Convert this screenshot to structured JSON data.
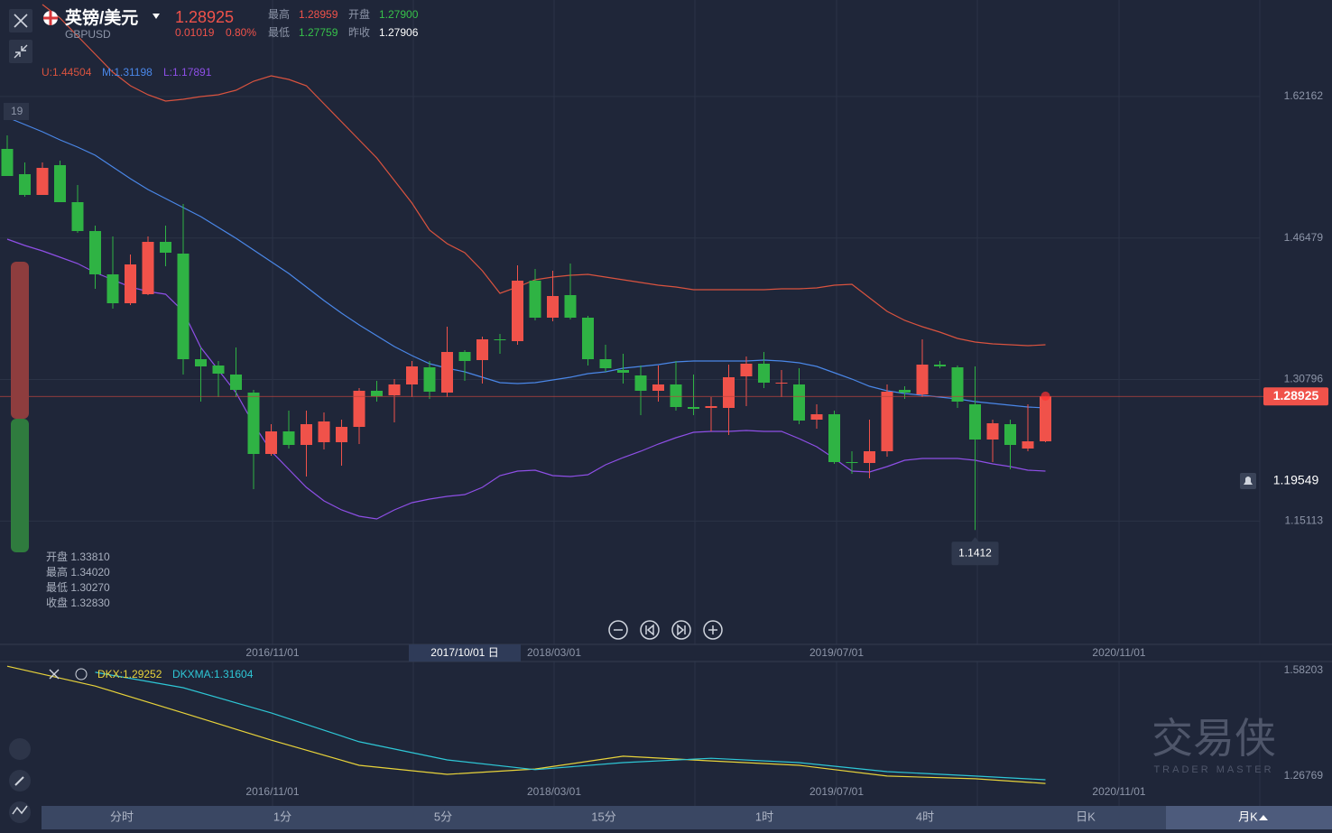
{
  "header": {
    "symbol": "英镑/美元",
    "code": "GBPUSD",
    "price": "1.28925",
    "change": "0.01019",
    "change_pct": "0.80%",
    "stats": [
      [
        "最高",
        "1.28959"
      ],
      [
        "开盘",
        "1.27900"
      ],
      [
        "最低",
        "1.27759"
      ],
      [
        "昨收",
        "1.27906"
      ]
    ]
  },
  "side_tag": "19",
  "info": [
    "开盘 1.33810",
    "最高 1.34020",
    "最低 1.30270",
    "收盘 1.32830"
  ],
  "crosshair_date": "2017/10/01 日",
  "alert_price": 1.19549,
  "watermark": {
    "title": "交易侠",
    "subtitle": "TRADER MASTER"
  },
  "timeframes": [
    "分时",
    "1分",
    "5分",
    "15分",
    "1时",
    "4时",
    "日K",
    "月K"
  ],
  "chart_data": [
    {
      "type": "candlestick",
      "up_color": "#f0524a",
      "down_color": "#2fb344",
      "ylim": [
        1.0145,
        1.7285
      ],
      "yticks": [
        1.15113,
        1.30796,
        1.46479,
        1.62162
      ],
      "grid": true,
      "x_labels": [
        "2016/11/01",
        "2018/03/01",
        "2019/07/01",
        "2020/11/01"
      ],
      "candles": [
        {
          "open": 1.5635,
          "high": 1.5785,
          "low": 1.5335,
          "close": 1.5335
        },
        {
          "open": 1.5355,
          "high": 1.5485,
          "low": 1.5105,
          "close": 1.5125
        },
        {
          "open": 1.5125,
          "high": 1.5485,
          "low": 1.5125,
          "close": 1.5425
        },
        {
          "open": 1.5455,
          "high": 1.5505,
          "low": 1.5045,
          "close": 1.5045
        },
        {
          "open": 1.5045,
          "high": 1.5235,
          "low": 1.4705,
          "close": 1.4725
        },
        {
          "open": 1.4725,
          "high": 1.4785,
          "low": 1.4085,
          "close": 1.4245
        },
        {
          "open": 1.4245,
          "high": 1.4665,
          "low": 1.3865,
          "close": 1.3925
        },
        {
          "open": 1.3925,
          "high": 1.4465,
          "low": 1.3905,
          "close": 1.4355
        },
        {
          "open": 1.4025,
          "high": 1.4665,
          "low": 1.4015,
          "close": 1.4605
        },
        {
          "open": 1.4605,
          "high": 1.4785,
          "low": 1.4335,
          "close": 1.4485
        },
        {
          "open": 1.4475,
          "high": 1.5025,
          "low": 1.3135,
          "close": 1.3305
        },
        {
          "open": 1.3305,
          "high": 1.3435,
          "low": 1.2835,
          "close": 1.3225
        },
        {
          "open": 1.3235,
          "high": 1.3285,
          "low": 1.2885,
          "close": 1.3145
        },
        {
          "open": 1.3135,
          "high": 1.3435,
          "low": 1.2885,
          "close": 1.2965
        },
        {
          "open": 1.2935,
          "high": 1.2965,
          "low": 1.1865,
          "close": 1.2255
        },
        {
          "open": 1.2255,
          "high": 1.2585,
          "low": 1.2235,
          "close": 1.2505
        },
        {
          "open": 1.2505,
          "high": 1.2735,
          "low": 1.2315,
          "close": 1.2355
        },
        {
          "open": 1.2355,
          "high": 1.2735,
          "low": 1.2005,
          "close": 1.2585
        },
        {
          "open": 1.2385,
          "high": 1.2715,
          "low": 1.2305,
          "close": 1.2615
        },
        {
          "open": 1.2385,
          "high": 1.2635,
          "low": 1.2125,
          "close": 1.2555
        },
        {
          "open": 1.2555,
          "high": 1.2985,
          "low": 1.2365,
          "close": 1.2955
        },
        {
          "open": 1.2955,
          "high": 1.3065,
          "low": 1.2835,
          "close": 1.2895
        },
        {
          "open": 1.2905,
          "high": 1.3085,
          "low": 1.2605,
          "close": 1.3025
        },
        {
          "open": 1.3025,
          "high": 1.3285,
          "low": 1.2885,
          "close": 1.3225
        },
        {
          "open": 1.3215,
          "high": 1.3285,
          "low": 1.2865,
          "close": 1.2945
        },
        {
          "open": 1.2935,
          "high": 1.3665,
          "low": 1.2885,
          "close": 1.3385
        },
        {
          "open": 1.3385,
          "high": 1.3405,
          "low": 1.3065,
          "close": 1.3285
        },
        {
          "open": 1.3295,
          "high": 1.3555,
          "low": 1.3035,
          "close": 1.3525
        },
        {
          "open": 1.3525,
          "high": 1.3585,
          "low": 1.3365,
          "close": 1.3515
        },
        {
          "open": 1.3505,
          "high": 1.4345,
          "low": 1.3465,
          "close": 1.4175
        },
        {
          "open": 1.4175,
          "high": 1.4305,
          "low": 1.3735,
          "close": 1.3765
        },
        {
          "open": 1.3765,
          "high": 1.4285,
          "low": 1.3725,
          "close": 1.4005
        },
        {
          "open": 1.4015,
          "high": 1.4365,
          "low": 1.3745,
          "close": 1.3765
        },
        {
          "open": 1.3765,
          "high": 1.3785,
          "low": 1.3235,
          "close": 1.3305
        },
        {
          "open": 1.3305,
          "high": 1.3465,
          "low": 1.3165,
          "close": 1.3205
        },
        {
          "open": 1.3185,
          "high": 1.3365,
          "low": 1.3035,
          "close": 1.3155
        },
        {
          "open": 1.3125,
          "high": 1.3235,
          "low": 1.2685,
          "close": 1.2955
        },
        {
          "open": 1.2955,
          "high": 1.3235,
          "low": 1.2835,
          "close": 1.3025
        },
        {
          "open": 1.3025,
          "high": 1.3285,
          "low": 1.2735,
          "close": 1.2775
        },
        {
          "open": 1.2775,
          "high": 1.3135,
          "low": 1.2685,
          "close": 1.2755
        },
        {
          "open": 1.2765,
          "high": 1.2885,
          "low": 1.2505,
          "close": 1.2785
        },
        {
          "open": 1.2765,
          "high": 1.3245,
          "low": 1.2465,
          "close": 1.3105
        },
        {
          "open": 1.3115,
          "high": 1.3335,
          "low": 1.2785,
          "close": 1.3255
        },
        {
          "open": 1.3255,
          "high": 1.3385,
          "low": 1.2985,
          "close": 1.3045
        },
        {
          "open": 1.3035,
          "high": 1.3185,
          "low": 1.2885,
          "close": 1.3045
        },
        {
          "open": 1.3025,
          "high": 1.3205,
          "low": 1.2585,
          "close": 1.2625
        },
        {
          "open": 1.2635,
          "high": 1.2805,
          "low": 1.2535,
          "close": 1.2695
        },
        {
          "open": 1.2695,
          "high": 1.2735,
          "low": 1.2145,
          "close": 1.2165
        },
        {
          "open": 1.2165,
          "high": 1.2285,
          "low": 1.2035,
          "close": 1.2155
        },
        {
          "open": 1.2155,
          "high": 1.2635,
          "low": 1.1985,
          "close": 1.2285
        },
        {
          "open": 1.2285,
          "high": 1.3025,
          "low": 1.2225,
          "close": 1.2945
        },
        {
          "open": 1.2965,
          "high": 1.3005,
          "low": 1.2865,
          "close": 1.2935
        },
        {
          "open": 1.2915,
          "high": 1.3525,
          "low": 1.2885,
          "close": 1.3245
        },
        {
          "open": 1.3245,
          "high": 1.3285,
          "low": 1.3205,
          "close": 1.3225
        },
        {
          "open": 1.3215,
          "high": 1.3235,
          "low": 1.2765,
          "close": 1.2835
        },
        {
          "open": 1.2805,
          "high": 1.3225,
          "low": 1.1412,
          "close": 1.2415
        },
        {
          "open": 1.2415,
          "high": 1.2635,
          "low": 1.2165,
          "close": 1.2595
        },
        {
          "open": 1.2585,
          "high": 1.2635,
          "low": 1.2085,
          "close": 1.2355
        },
        {
          "open": 1.2315,
          "high": 1.2805,
          "low": 1.2285,
          "close": 1.2395
        },
        {
          "open": 1.2395,
          "high": 1.28959,
          "low": 1.2385,
          "close": 1.28925
        }
      ],
      "series": [
        {
          "name": "U:1.44504",
          "color": "#d9533f",
          "values": [
            null,
            null,
            1.7235,
            1.7085,
            1.6885,
            1.6685,
            1.6485,
            1.6335,
            1.6235,
            1.6165,
            1.6185,
            1.6215,
            1.6235,
            1.6285,
            1.6385,
            1.6445,
            1.6405,
            1.6335,
            1.6135,
            1.5935,
            1.5735,
            1.5535,
            1.5285,
            1.5035,
            1.4735,
            1.4585,
            1.4485,
            1.4285,
            1.4035,
            1.4105,
            1.4185,
            1.4215,
            1.4235,
            1.4245,
            1.4215,
            1.4185,
            1.4155,
            1.4125,
            1.4105,
            1.4075,
            1.4075,
            1.4075,
            1.4075,
            1.4075,
            1.4085,
            1.4085,
            1.4095,
            1.4125,
            1.4135,
            1.3985,
            1.3835,
            1.3735,
            1.3665,
            1.3605,
            1.3535,
            1.3495,
            1.3475,
            1.3465,
            1.3455,
            1.3465
          ]
        },
        {
          "name": "M:1.31198",
          "color": "#4a87e8",
          "values": [
            1.5985,
            1.5905,
            1.5825,
            1.5735,
            1.5655,
            1.5565,
            1.5435,
            1.5305,
            1.5185,
            1.5085,
            1.4985,
            1.4885,
            1.4765,
            1.4645,
            1.4515,
            1.4385,
            1.4255,
            1.4105,
            1.3955,
            1.3815,
            1.3685,
            1.3565,
            1.3445,
            1.3345,
            1.3255,
            1.3205,
            1.3165,
            1.3105,
            1.3045,
            1.3035,
            1.3045,
            1.3075,
            1.3105,
            1.3145,
            1.3165,
            1.3205,
            1.3225,
            1.3245,
            1.3275,
            1.3285,
            1.3285,
            1.3285,
            1.3285,
            1.3295,
            1.3285,
            1.3265,
            1.3225,
            1.3155,
            1.3085,
            1.3005,
            1.2955,
            1.2925,
            1.2905,
            1.2885,
            1.2865,
            1.2835,
            1.2815,
            1.2795,
            1.2775,
            1.2765
          ]
        },
        {
          "name": "L:1.17891",
          "color": "#8e4fe6",
          "values": [
            1.4635,
            1.4565,
            1.4505,
            1.4435,
            1.4365,
            1.4265,
            1.4185,
            1.4105,
            1.4055,
            1.4025,
            1.3835,
            1.3435,
            1.3185,
            1.2935,
            1.2585,
            1.2285,
            1.2085,
            1.1885,
            1.1735,
            1.1635,
            1.1565,
            1.1535,
            1.1635,
            1.1715,
            1.1755,
            1.1785,
            1.1805,
            1.1885,
            1.2015,
            1.2065,
            1.2075,
            1.2015,
            1.2005,
            1.2025,
            1.2135,
            1.2215,
            1.2285,
            1.2365,
            1.2435,
            1.2495,
            1.2505,
            1.2505,
            1.2515,
            1.2505,
            1.2505,
            1.2425,
            1.2335,
            1.2205,
            1.2065,
            1.2055,
            1.2115,
            1.2185,
            1.2205,
            1.2205,
            1.2205,
            1.2185,
            1.2145,
            1.2115,
            1.2075,
            1.2065
          ]
        }
      ]
    },
    {
      "type": "line",
      "ylim": [
        1.179,
        1.609
      ],
      "yticks": [
        1.26769,
        1.58203
      ],
      "x": [
        0,
        5,
        10,
        15,
        20,
        25,
        30,
        35,
        40,
        45,
        50,
        55,
        59
      ],
      "series": [
        {
          "name": "DKX:1.29252",
          "color": "#e8d33a",
          "values": [
            1.595,
            1.536,
            1.456,
            1.375,
            1.3,
            1.273,
            1.289,
            1.327,
            1.313,
            1.3,
            1.268,
            1.26,
            1.246
          ]
        },
        {
          "name": "DKXMA:1.31604",
          "color": "#2ec7d6",
          "values": [
            null,
            1.577,
            1.531,
            1.456,
            1.37,
            1.316,
            1.287,
            1.308,
            1.321,
            1.308,
            1.281,
            1.268,
            1.257
          ]
        }
      ]
    }
  ]
}
